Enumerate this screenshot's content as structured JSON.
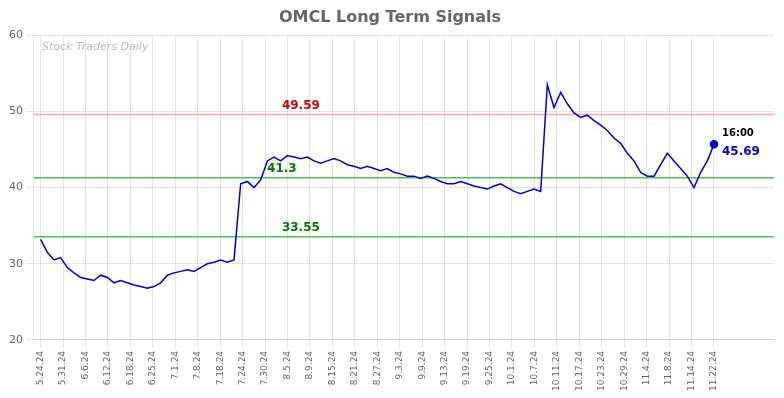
{
  "chart_data": {
    "type": "line",
    "title": "OMCL Long Term Signals",
    "x": [
      0,
      1,
      2,
      3,
      4,
      5,
      6,
      7,
      8,
      9,
      10,
      11,
      12,
      13,
      14,
      15,
      16,
      17,
      18,
      19,
      20,
      21,
      22,
      23,
      24,
      25,
      26,
      27,
      28,
      29,
      30,
      31,
      32,
      33,
      34,
      35,
      36,
      37,
      38,
      39,
      40,
      41,
      42,
      43,
      44,
      45,
      46,
      47,
      48,
      49,
      50,
      51,
      52,
      53,
      54,
      55,
      56,
      57,
      58,
      59,
      60,
      61,
      62,
      63,
      64,
      65,
      66,
      67,
      68,
      69,
      70,
      71,
      72,
      73,
      74,
      75,
      76,
      77,
      78,
      79,
      80,
      81,
      82,
      83,
      84,
      85,
      86,
      87,
      88,
      89,
      90,
      91,
      92,
      93,
      94,
      95,
      96,
      97,
      98,
      99,
      100,
      101
    ],
    "values": [
      33.2,
      31.5,
      30.5,
      30.8,
      29.5,
      28.8,
      28.2,
      28.0,
      27.8,
      28.5,
      28.2,
      27.5,
      27.8,
      27.5,
      27.2,
      27.0,
      26.8,
      27.0,
      27.5,
      28.5,
      28.8,
      29.0,
      29.2,
      29.0,
      29.5,
      30.0,
      30.2,
      30.5,
      30.2,
      30.5,
      40.5,
      40.8,
      40.0,
      41.0,
      43.5,
      44.0,
      43.5,
      44.2,
      44.0,
      43.8,
      44.0,
      43.5,
      43.2,
      43.5,
      43.8,
      43.5,
      43.0,
      42.8,
      42.5,
      42.8,
      42.5,
      42.2,
      42.5,
      42.0,
      41.8,
      41.5,
      41.5,
      41.2,
      41.5,
      41.2,
      40.8,
      40.5,
      40.5,
      40.8,
      40.5,
      40.2,
      40.0,
      39.8,
      40.2,
      40.5,
      40.0,
      39.5,
      39.2,
      39.5,
      39.8,
      39.5,
      53.5,
      50.5,
      52.5,
      51.0,
      49.8,
      49.2,
      49.5,
      48.8,
      48.2,
      47.5,
      46.5,
      45.8,
      44.5,
      43.5,
      42.0,
      41.5,
      41.5,
      43.0,
      44.5,
      43.5,
      42.5,
      41.5,
      40.0,
      42.0,
      43.5,
      45.69
    ],
    "color": "#0000cc",
    "xlim": [
      -1,
      110
    ],
    "xticks": [
      {
        "value": 0,
        "label": "5.24.24"
      },
      {
        "value": 3.3666666666666667,
        "label": "5.31.24"
      },
      {
        "value": 6.733333333333333,
        "label": "6.6.24"
      },
      {
        "value": 10.1,
        "label": "6.12.24"
      },
      {
        "value": 13.466666666666667,
        "label": "6.18.24"
      },
      {
        "value": 16.833333333333332,
        "label": "6.25.24"
      },
      {
        "value": 20.2,
        "label": "7.1.24"
      },
      {
        "value": 23.566666666666666,
        "label": "7.8.24"
      },
      {
        "value": 26.933333333333334,
        "label": "7.18.24"
      },
      {
        "value": 30.3,
        "label": "7.24.24"
      },
      {
        "value": 33.666666666666664,
        "label": "7.30.24"
      },
      {
        "value": 37.03333333333333,
        "label": "8.5.24"
      },
      {
        "value": 40.4,
        "label": "8.9.24"
      },
      {
        "value": 43.766666666666666,
        "label": "8.15.24"
      },
      {
        "value": 47.13333333333333,
        "label": "8.21.24"
      },
      {
        "value": 50.5,
        "label": "8.27.24"
      },
      {
        "value": 53.86666666666667,
        "label": "9.3.24"
      },
      {
        "value": 57.233333333333334,
        "label": "9.9.24"
      },
      {
        "value": 60.6,
        "label": "9.13.24"
      },
      {
        "value": 63.96666666666667,
        "label": "9.19.24"
      },
      {
        "value": 67.33333333333333,
        "label": "9.25.24"
      },
      {
        "value": 70.7,
        "label": "10.1.24"
      },
      {
        "value": 74.06666666666666,
        "label": "10.7.24"
      },
      {
        "value": 77.43333333333334,
        "label": "10.11.24"
      },
      {
        "value": 80.8,
        "label": "10.17.24"
      },
      {
        "value": 84.16666666666667,
        "label": "10.23.24"
      },
      {
        "value": 87.53333333333333,
        "label": "10.29.24"
      },
      {
        "value": 90.9,
        "label": "11.4.24"
      },
      {
        "value": 94.26666666666667,
        "label": "11.8.24"
      },
      {
        "value": 97.63333333333334,
        "label": "11.14.24"
      },
      {
        "value": 101,
        "label": "11.22.24"
      }
    ],
    "ylim": [
      20,
      60
    ],
    "yticks": [
      20,
      30,
      40,
      50,
      60
    ],
    "grid": true,
    "hlines": [
      {
        "value": 49.59,
        "label": "49.59",
        "color": "#ffaaaa",
        "label_color": "#cc0000"
      },
      {
        "value": 41.3,
        "label": "41.3",
        "color": "#55bb55",
        "label_color": "#007700"
      },
      {
        "value": 33.55,
        "label": "33.55",
        "color": "#55bb55",
        "label_color": "#007700"
      }
    ],
    "end_labels": [
      {
        "text": "16:00"
      },
      {
        "text": "45.69",
        "value": 45.69,
        "color": "#0000cc"
      }
    ],
    "watermark": "Stock Traders Daily"
  }
}
